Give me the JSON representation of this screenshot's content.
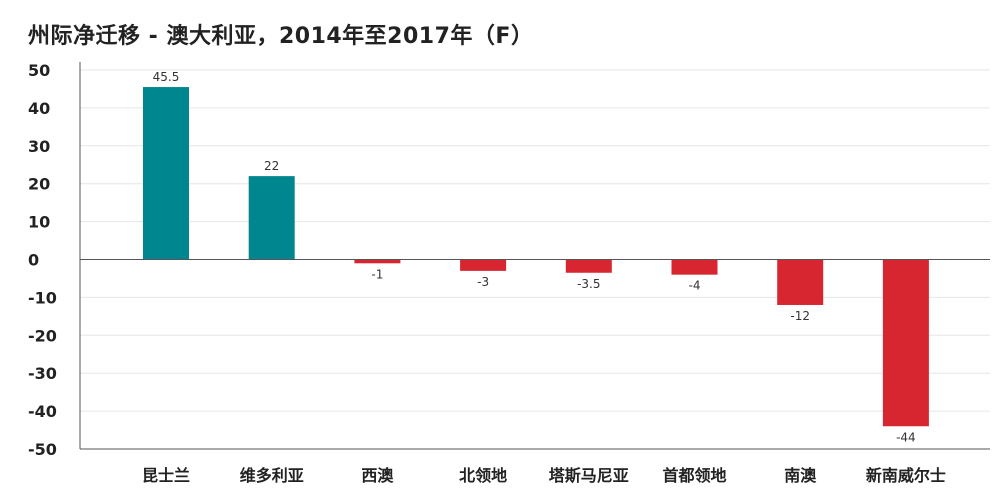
{
  "chart_data": {
    "type": "bar",
    "title": "州际净迁移 - 澳大利亚，2014年至2017年（F）",
    "categories": [
      "昆士兰",
      "维多利亚",
      "西澳",
      "北领地",
      "塔斯马尼亚",
      "首都领地",
      "南澳",
      "新南威尔士"
    ],
    "values": [
      45.5,
      22,
      -1,
      -3,
      -3.5,
      -4,
      -12,
      -44
    ],
    "data_labels": [
      "45.5",
      "22",
      "-1",
      "-3",
      "-3.5",
      "-4",
      "-12",
      "-44"
    ],
    "ylim": [
      -50,
      50
    ],
    "yticks": [
      50,
      40,
      30,
      20,
      10,
      0,
      -10,
      -20,
      -30,
      -40,
      -50
    ],
    "grid": true,
    "colors": {
      "positive": "#00868f",
      "negative": "#d72630",
      "grid": "#e6e6e6",
      "axis": "#555555"
    }
  }
}
